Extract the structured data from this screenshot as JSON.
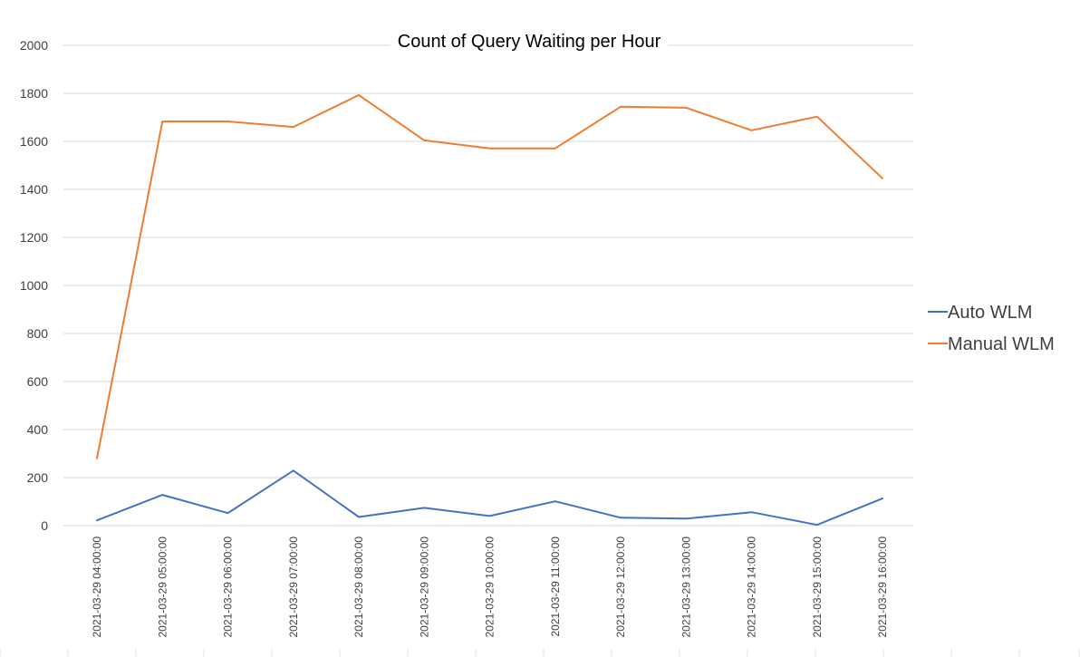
{
  "chart_data": {
    "type": "line",
    "title": "Count of Query Waiting per Hour",
    "xlabel": "",
    "ylabel": "",
    "ylim": [
      0,
      2000
    ],
    "yticks": [
      0,
      200,
      400,
      600,
      800,
      1000,
      1200,
      1400,
      1600,
      1800,
      2000
    ],
    "grid": true,
    "legend_position": "right",
    "categories": [
      "2021-03-29 04:00:00",
      "2021-03-29 05:00:00",
      "2021-03-29 06:00:00",
      "2021-03-29 07:00:00",
      "2021-03-29 08:00:00",
      "2021-03-29 09:00:00",
      "2021-03-29 10:00:00",
      "2021-03-29 11:00:00",
      "2021-03-29 12:00:00",
      "2021-03-29 13:00:00",
      "2021-03-29 14:00:00",
      "2021-03-29 15:00:00",
      "2021-03-29 16:00:00"
    ],
    "series": [
      {
        "name": "Auto WLM",
        "color": "#4472c4",
        "values": [
          22,
          128,
          52,
          229,
          36,
          74,
          40,
          101,
          33,
          29,
          56,
          3,
          113
        ]
      },
      {
        "name": "Manual WLM",
        "color": "#ed7d31",
        "values": [
          280,
          1683,
          1683,
          1660,
          1793,
          1604,
          1571,
          1571,
          1744,
          1740,
          1646,
          1703,
          1446
        ]
      }
    ]
  }
}
